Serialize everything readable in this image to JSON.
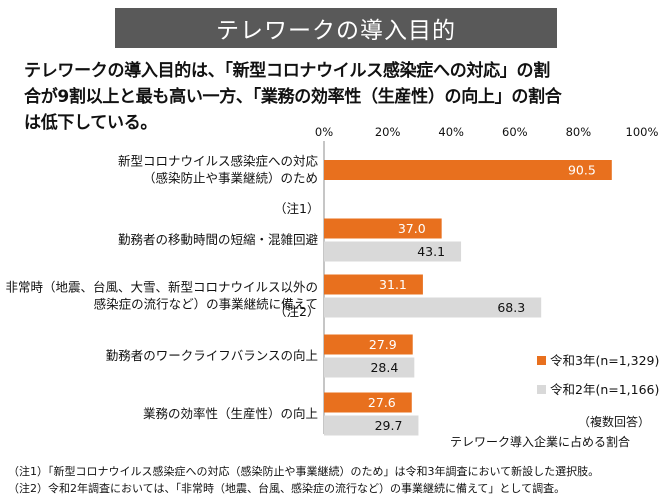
{
  "header": {
    "title": "テレワークの導入目的"
  },
  "lead": {
    "lines": [
      "テレワークの導入目的は、「新型コロナウイルス感染症への対応」の割",
      "合が9割以上と最も高い一方、「業務の効率性（生産性）の向上」の割合",
      "は低下している。"
    ]
  },
  "chart_data": {
    "type": "bar",
    "orientation": "horizontal",
    "categories": [
      [
        "新型コロナウイルス感染症への対応",
        "（感染防止や事業継続）のため"
      ],
      [
        "勤務者の移動時間の短縮・混雑回避"
      ],
      [
        "非常時（地震、台風、大雪、新型コロナウイルス以外の",
        "感染症の流行など）の事業継続に備えて"
      ],
      [
        "勤務者のワークライフバランスの向上"
      ],
      [
        "業務の効率性（生産性）の向上"
      ]
    ],
    "category_notes": [
      "（注1）",
      "",
      "（注2）",
      "",
      ""
    ],
    "series": [
      {
        "name": "令和3年(n=1,329)",
        "values": [
          90.5,
          37.0,
          31.1,
          27.9,
          27.6
        ],
        "labels": [
          "90.5",
          "37.0",
          "31.1",
          "27.9",
          "27.6"
        ],
        "color": "#E8701E",
        "label_color": "#ffffff"
      },
      {
        "name": "令和2年(n=1,166)",
        "values": [
          null,
          43.1,
          68.3,
          28.4,
          29.7
        ],
        "labels": [
          "",
          "43.1",
          "68.3",
          "28.4",
          "29.7"
        ],
        "color": "#D9D9D9",
        "label_color": "#111111"
      }
    ],
    "xlim": [
      0,
      100
    ],
    "x_ticks": [
      0,
      20,
      40,
      60,
      80,
      100
    ],
    "x_tick_labels": [
      "0%",
      "20%",
      "40%",
      "60%",
      "80%",
      "100%"
    ],
    "x_axis_position": "top",
    "legend_position": "bottom-right",
    "notes": [
      "（複数回答）",
      "テレワーク導入企業に占める割合"
    ]
  },
  "footnotes": [
    "（注1）「新型コロナウイルス感染症への対応（感染防止や事業継続）のため」は令和3年調査において新設した選択肢。",
    "（注2）令和2年調査においては、「非常時（地震、台風、感染症の流行など）の事業継続に備えて」として調査。"
  ]
}
